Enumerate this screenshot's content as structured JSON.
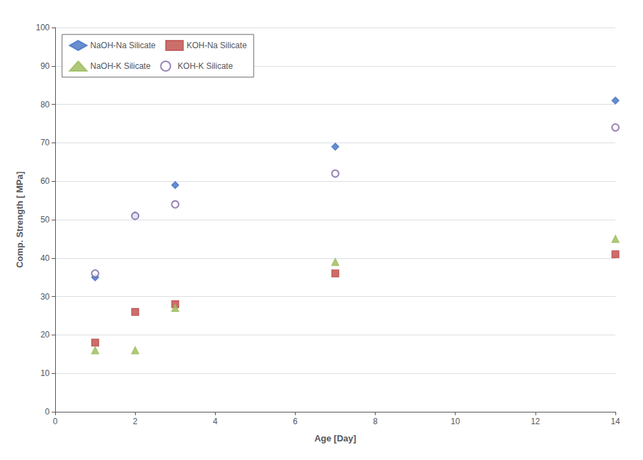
{
  "chart_data": {
    "type": "scatter",
    "xlabel": "Age [Day]",
    "ylabel": "Comp. Strength [ MPa]",
    "xlim": [
      0,
      14
    ],
    "ylim": [
      0,
      100
    ],
    "xticks": [
      0,
      2,
      4,
      6,
      8,
      10,
      12,
      14
    ],
    "yticks": [
      0,
      10,
      20,
      30,
      40,
      50,
      60,
      70,
      80,
      90,
      100
    ],
    "grid": "y",
    "legend": "upper left",
    "series": [
      {
        "name": "NaOH-Na Silicate",
        "color": "#4472C4",
        "marker": "diamond",
        "x": [
          1,
          2,
          3,
          7,
          14
        ],
        "values": [
          35,
          51,
          59,
          69,
          81
        ]
      },
      {
        "name": "KOH-Na Silicate",
        "color": "#BE4B48",
        "marker": "square",
        "x": [
          1,
          2,
          3,
          7,
          14
        ],
        "values": [
          18,
          26,
          28,
          36,
          41
        ]
      },
      {
        "name": "NaOH-K Silicate",
        "color": "#9BBB59",
        "marker": "triangle",
        "x": [
          1,
          2,
          3,
          7,
          14
        ],
        "values": [
          16,
          16,
          27,
          39,
          45
        ]
      },
      {
        "name": "KOH-K Silicate",
        "color": "#8064A2",
        "marker": "circle-open",
        "x": [
          1,
          2,
          3,
          7,
          14
        ],
        "values": [
          36,
          51,
          54,
          62,
          74
        ]
      }
    ]
  }
}
